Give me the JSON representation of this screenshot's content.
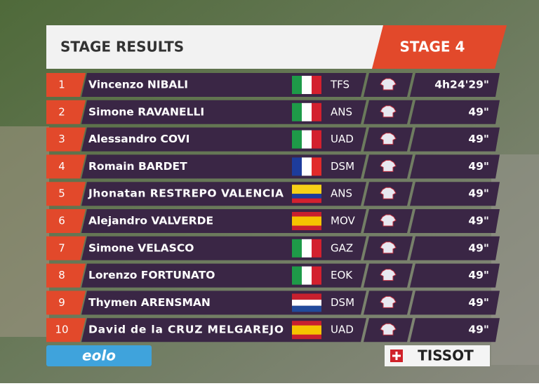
{
  "header": {
    "title": "STAGE RESULTS",
    "stage": "STAGE 4"
  },
  "table": {
    "rows": [
      {
        "rank": "1",
        "rider": "Vincenzo NIBALI",
        "team": "TFS",
        "time": "4h24'29\""
      },
      {
        "rank": "2",
        "rider": "Simone RAVANELLI",
        "team": "ANS",
        "time": "49\""
      },
      {
        "rank": "3",
        "rider": "Alessandro COVI",
        "team": "UAD",
        "time": "49\""
      },
      {
        "rank": "4",
        "rider": "Romain BARDET",
        "team": "DSM",
        "time": "49\""
      },
      {
        "rank": "5",
        "rider": "Jhonatan RESTREPO VALENCIA",
        "team": "ANS",
        "time": "49\""
      },
      {
        "rank": "6",
        "rider": "Alejandro VALVERDE",
        "team": "MOV",
        "time": "49\""
      },
      {
        "rank": "7",
        "rider": "Simone VELASCO",
        "team": "GAZ",
        "time": "49\""
      },
      {
        "rank": "8",
        "rider": "Lorenzo FORTUNATO",
        "team": "EOK",
        "time": "49\""
      },
      {
        "rank": "9",
        "rider": "Thymen ARENSMAN",
        "team": "DSM",
        "time": "49\""
      },
      {
        "rank": "10",
        "rider": "David de la CRUZ MELGAREJO",
        "team": "UAD",
        "time": "49\""
      }
    ]
  },
  "sponsors": {
    "left": "eolo",
    "right": "TISSOT"
  }
}
